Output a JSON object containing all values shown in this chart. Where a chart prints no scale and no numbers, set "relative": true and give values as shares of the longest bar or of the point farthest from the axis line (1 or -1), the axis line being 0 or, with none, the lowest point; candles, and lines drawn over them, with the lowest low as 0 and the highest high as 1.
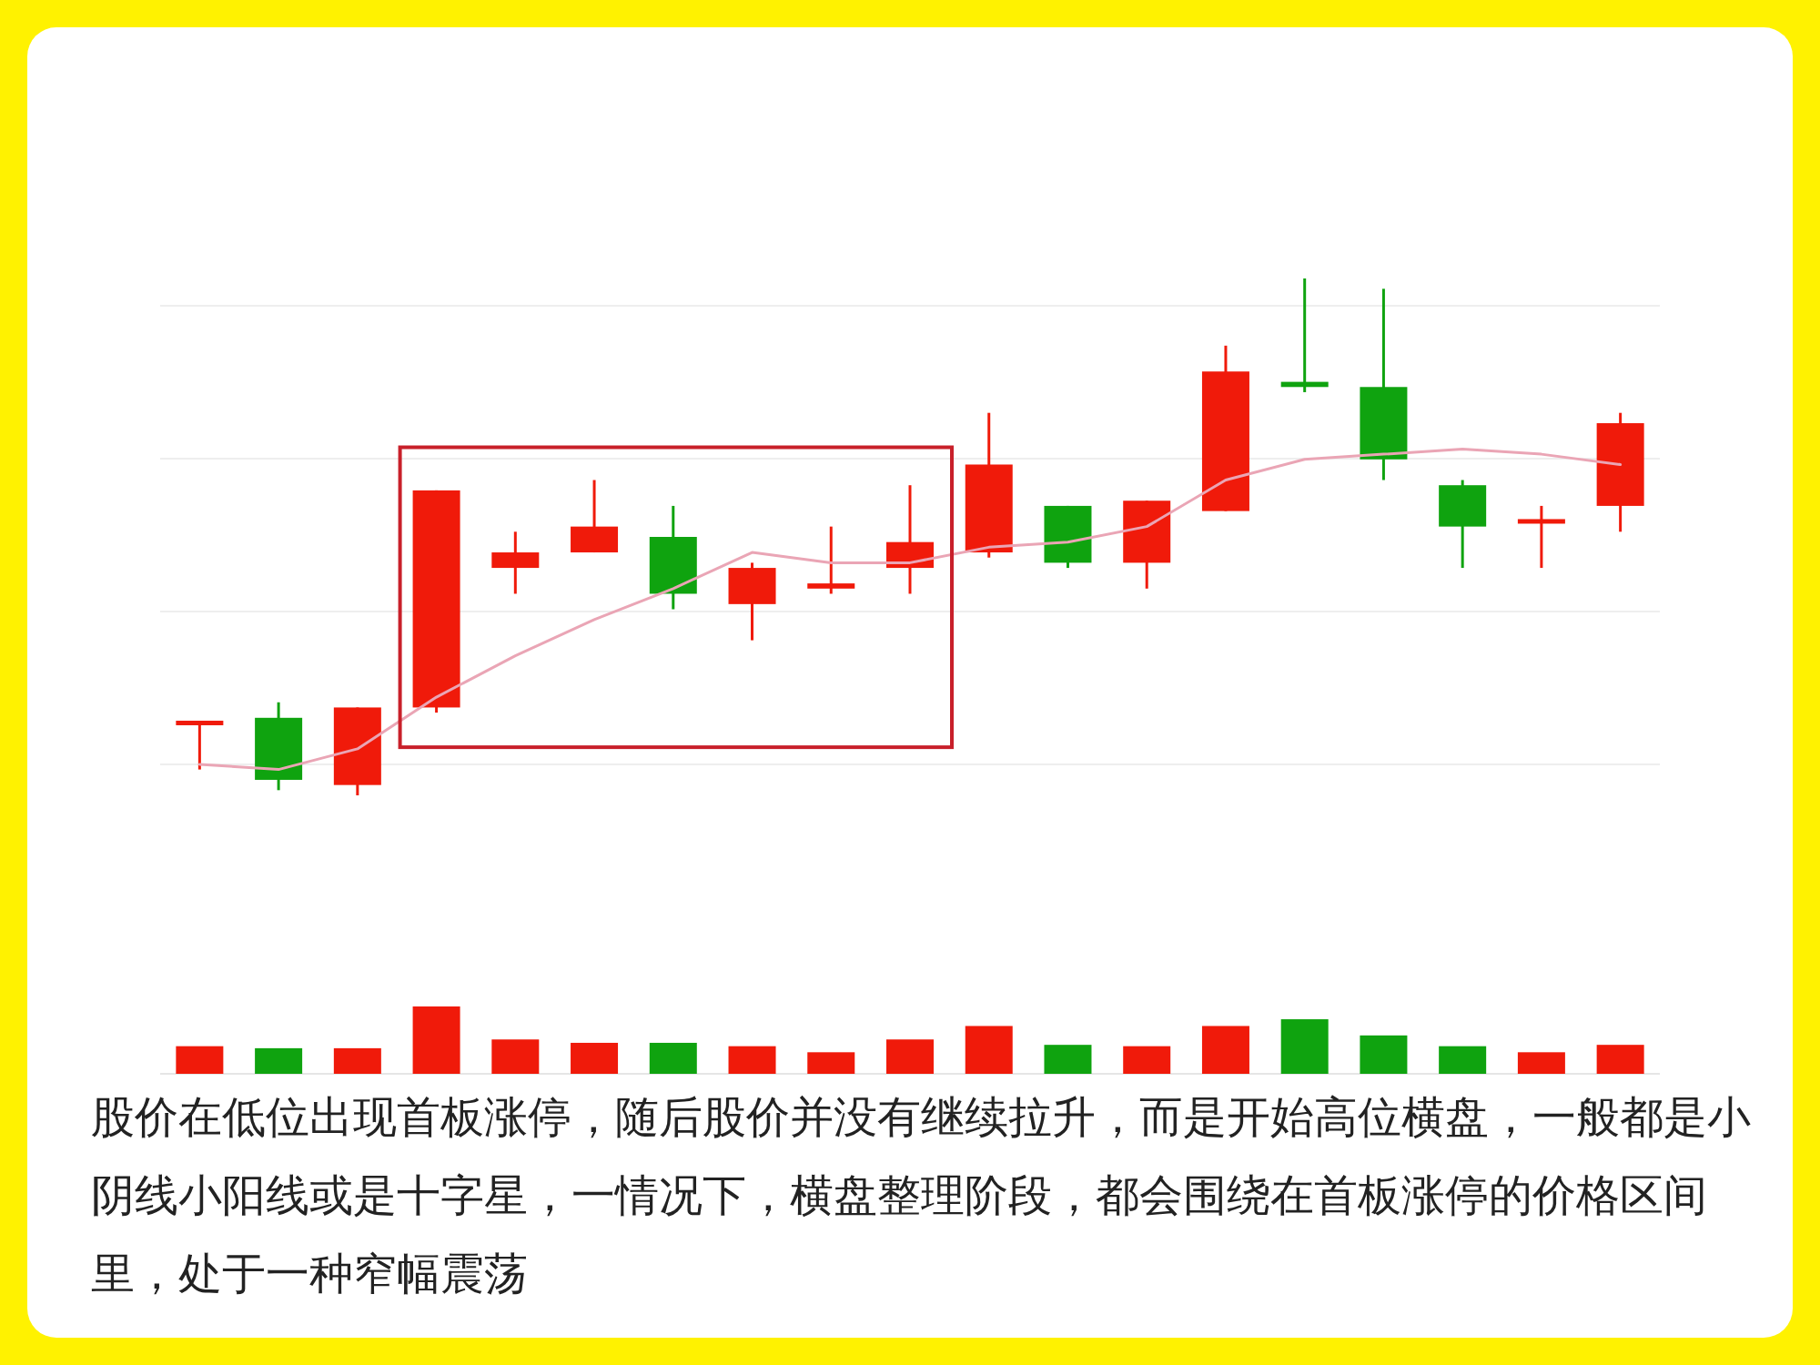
{
  "chart_data": [
    {
      "type": "candlestick",
      "relative": true,
      "grid": "y",
      "categories": [
        null,
        null,
        null,
        null,
        null,
        null,
        null,
        null,
        null,
        null,
        null,
        null,
        null,
        null,
        null,
        null,
        null,
        null,
        null
      ],
      "ohlc": [
        [
          0.14,
          0.14,
          0.05,
          0.14
        ],
        [
          0.15,
          0.18,
          0.01,
          0.03
        ],
        [
          0.02,
          0.17,
          0,
          0.17
        ],
        [
          0.17,
          0.59,
          0.16,
          0.59
        ],
        [
          0.44,
          0.51,
          0.39,
          0.47
        ],
        [
          0.47,
          0.61,
          0.47,
          0.52
        ],
        [
          0.5,
          0.56,
          0.36,
          0.39
        ],
        [
          0.37,
          0.45,
          0.3,
          0.44
        ],
        [
          0.4,
          0.52,
          0.39,
          0.41
        ],
        [
          0.44,
          0.6,
          0.39,
          0.49
        ],
        [
          0.47,
          0.74,
          0.46,
          0.64
        ],
        [
          0.56,
          0.56,
          0.44,
          0.45
        ],
        [
          0.45,
          0.57,
          0.4,
          0.57
        ],
        [
          0.55,
          0.87,
          0.55,
          0.82
        ],
        [
          0.8,
          1,
          0.78,
          0.79
        ],
        [
          0.79,
          0.98,
          0.61,
          0.65
        ],
        [
          0.6,
          0.61,
          0.44,
          0.52
        ],
        [
          0.53,
          0.56,
          0.44,
          0.53
        ],
        [
          0.56,
          0.74,
          0.51,
          0.72
        ]
      ],
      "colors": [
        "#f01a0a",
        "#0fa30f",
        "#f01a0a",
        "#f01a0a",
        "#f01a0a",
        "#f01a0a",
        "#0fa30f",
        "#f01a0a",
        "#f01a0a",
        "#f01a0a",
        "#f01a0a",
        "#0fa30f",
        "#f01a0a",
        "#f01a0a",
        "#0fa30f",
        "#0fa30f",
        "#0fa30f",
        "#f01a0a",
        "#f01a0a"
      ],
      "series": [
        {
          "type": "line",
          "color": "#eaa5b5",
          "values": [
            0.06,
            0.05,
            0.09,
            0.19,
            0.27,
            0.34,
            0.4,
            0.47,
            0.45,
            0.45,
            0.48,
            0.49,
            0.52,
            0.61,
            0.65,
            0.66,
            0.67,
            0.66,
            0.64
          ]
        }
      ],
      "annotations": [
        "股价在低位出现首板涨停，随后股价并没有继续拉升，而是开始高位横盘，一般都是小阴线小阳线或是十字星，一情况下，横盘整理阶段，都会围绕在首板涨停的价格区间里，处于一种窄幅震荡"
      ]
    },
    {
      "type": "bar",
      "relative": true,
      "categories": [
        null,
        null,
        null,
        null,
        null,
        null,
        null,
        null,
        null,
        null,
        null,
        null,
        null,
        null,
        null,
        null,
        null,
        null,
        null
      ],
      "values": [
        0.41,
        0.38,
        0.38,
        1,
        0.51,
        0.46,
        0.46,
        0.41,
        0.32,
        0.51,
        0.71,
        0.43,
        0.41,
        0.71,
        0.81,
        0.57,
        0.41,
        0.32,
        0.43
      ],
      "colors": [
        "#f01a0a",
        "#0fa30f",
        "#f01a0a",
        "#f01a0a",
        "#f01a0a",
        "#f01a0a",
        "#0fa30f",
        "#f01a0a",
        "#f01a0a",
        "#f01a0a",
        "#f01a0a",
        "#0fa30f",
        "#f01a0a",
        "#f01a0a",
        "#0fa30f",
        "#0fa30f",
        "#0fa30f",
        "#f01a0a",
        "#f01a0a"
      ]
    }
  ]
}
